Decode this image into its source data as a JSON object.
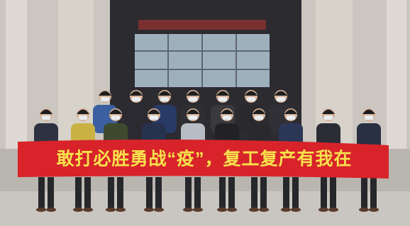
{
  "banner": {
    "text": "敢打必胜勇战“疫”，复工复产有我在"
  }
}
